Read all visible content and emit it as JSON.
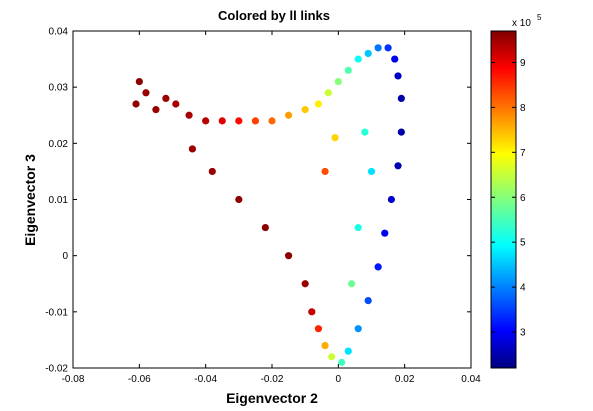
{
  "chart_data": {
    "type": "scatter",
    "title": "Colored by ll links",
    "xlabel": "Eigenvector 2",
    "ylabel": "Eigenvector 3",
    "xlim": [
      -0.08,
      0.04
    ],
    "ylim": [
      -0.02,
      0.04
    ],
    "xticks": [
      "-0.08",
      "-0.06",
      "-0.04",
      "-0.02",
      "0",
      "0.02",
      "0.04"
    ],
    "yticks": [
      "-0.02",
      "-0.01",
      "0",
      "0.01",
      "0.02",
      "0.03",
      "0.04"
    ],
    "grid": false,
    "colormap": "jet",
    "colorbar": {
      "range": [
        2.2,
        9.7
      ],
      "ticks": [
        "3",
        "4",
        "5",
        "6",
        "7",
        "8",
        "9"
      ],
      "exponent_label": "x 10",
      "exponent": "5"
    },
    "series": [
      {
        "points": [
          {
            "x": -0.06,
            "y": 0.031,
            "c": 9.6
          },
          {
            "x": -0.058,
            "y": 0.029,
            "c": 9.5
          },
          {
            "x": -0.061,
            "y": 0.027,
            "c": 9.6
          },
          {
            "x": -0.055,
            "y": 0.026,
            "c": 9.5
          },
          {
            "x": -0.052,
            "y": 0.028,
            "c": 9.5
          },
          {
            "x": -0.049,
            "y": 0.027,
            "c": 9.4
          },
          {
            "x": -0.045,
            "y": 0.025,
            "c": 9.4
          },
          {
            "x": -0.04,
            "y": 0.024,
            "c": 9.3
          },
          {
            "x": -0.035,
            "y": 0.024,
            "c": 9.0
          },
          {
            "x": -0.03,
            "y": 0.024,
            "c": 8.7
          },
          {
            "x": -0.025,
            "y": 0.024,
            "c": 8.3
          },
          {
            "x": -0.02,
            "y": 0.024,
            "c": 8.0
          },
          {
            "x": -0.015,
            "y": 0.025,
            "c": 7.6
          },
          {
            "x": -0.01,
            "y": 0.026,
            "c": 7.3
          },
          {
            "x": -0.006,
            "y": 0.027,
            "c": 7.0
          },
          {
            "x": -0.003,
            "y": 0.029,
            "c": 6.5
          },
          {
            "x": 0.0,
            "y": 0.031,
            "c": 6.0
          },
          {
            "x": 0.003,
            "y": 0.033,
            "c": 5.6
          },
          {
            "x": 0.006,
            "y": 0.035,
            "c": 5.1
          },
          {
            "x": 0.009,
            "y": 0.036,
            "c": 4.6
          },
          {
            "x": 0.012,
            "y": 0.037,
            "c": 4.0
          },
          {
            "x": 0.015,
            "y": 0.037,
            "c": 3.5
          },
          {
            "x": 0.017,
            "y": 0.035,
            "c": 3.0
          },
          {
            "x": 0.018,
            "y": 0.032,
            "c": 2.7
          },
          {
            "x": 0.019,
            "y": 0.028,
            "c": 2.5
          },
          {
            "x": 0.019,
            "y": 0.022,
            "c": 2.5
          },
          {
            "x": 0.018,
            "y": 0.016,
            "c": 2.6
          },
          {
            "x": 0.016,
            "y": 0.01,
            "c": 2.8
          },
          {
            "x": 0.014,
            "y": 0.004,
            "c": 3.0
          },
          {
            "x": 0.012,
            "y": -0.002,
            "c": 3.3
          },
          {
            "x": 0.009,
            "y": -0.008,
            "c": 3.7
          },
          {
            "x": 0.006,
            "y": -0.013,
            "c": 4.2
          },
          {
            "x": 0.003,
            "y": -0.017,
            "c": 4.8
          },
          {
            "x": 0.001,
            "y": -0.019,
            "c": 5.5
          },
          {
            "x": -0.002,
            "y": -0.018,
            "c": 6.5
          },
          {
            "x": -0.004,
            "y": -0.016,
            "c": 7.5
          },
          {
            "x": -0.006,
            "y": -0.013,
            "c": 8.5
          },
          {
            "x": -0.008,
            "y": -0.01,
            "c": 9.2
          },
          {
            "x": -0.01,
            "y": -0.005,
            "c": 9.5
          },
          {
            "x": -0.015,
            "y": 0.0,
            "c": 9.6
          },
          {
            "x": -0.022,
            "y": 0.005,
            "c": 9.6
          },
          {
            "x": -0.03,
            "y": 0.01,
            "c": 9.6
          },
          {
            "x": -0.038,
            "y": 0.015,
            "c": 9.5
          },
          {
            "x": -0.044,
            "y": 0.019,
            "c": 9.5
          },
          {
            "x": 0.008,
            "y": 0.022,
            "c": 5.3
          },
          {
            "x": 0.01,
            "y": 0.015,
            "c": 4.8
          },
          {
            "x": 0.006,
            "y": 0.005,
            "c": 5.2
          },
          {
            "x": 0.004,
            "y": -0.005,
            "c": 5.8
          },
          {
            "x": -0.004,
            "y": 0.015,
            "c": 8.2
          },
          {
            "x": -0.001,
            "y": 0.021,
            "c": 7.2
          }
        ]
      }
    ]
  }
}
